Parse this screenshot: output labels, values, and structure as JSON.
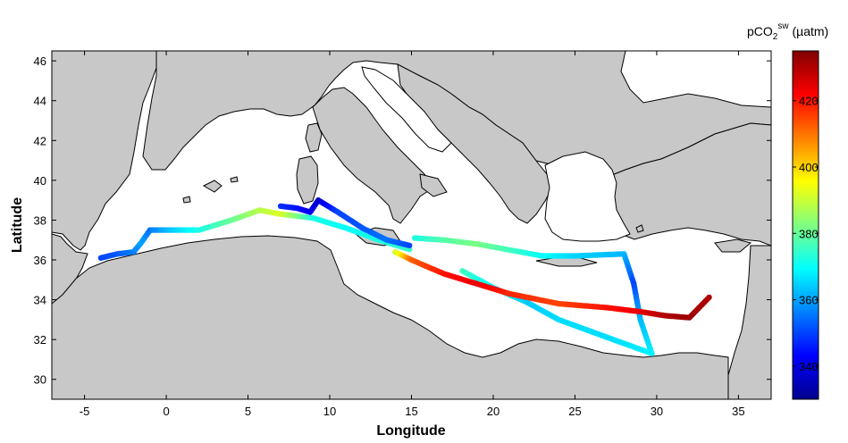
{
  "chart_data": {
    "type": "scatter",
    "title": "",
    "xlabel": "Longitude",
    "ylabel": "Latitude",
    "xlim": [
      -7,
      37
    ],
    "ylim": [
      29,
      46.5
    ],
    "xticks": [
      -5,
      0,
      5,
      10,
      15,
      20,
      25,
      30,
      35
    ],
    "yticks": [
      30,
      32,
      34,
      36,
      38,
      40,
      42,
      44,
      46
    ],
    "grid": false,
    "background": "map of the Mediterranean Sea (sea white, land grey)",
    "colors": {
      "land": "#c8c8c8",
      "sea": "#ffffff"
    },
    "colorbar": {
      "label_main": "pCO",
      "label_sub": "2",
      "label_sup": "sw",
      "label_unit": " (µatm)",
      "colormap": "jet",
      "range": [
        330,
        435
      ],
      "ticks": [
        340,
        360,
        380,
        400,
        420
      ]
    },
    "tracks": [
      {
        "points": [
          [
            -4.0,
            36.1,
            350
          ],
          [
            -3.0,
            36.3,
            352
          ],
          [
            -2.0,
            36.4,
            356
          ],
          [
            -1.5,
            36.9,
            360
          ],
          [
            -1.0,
            37.5,
            355
          ],
          [
            0.0,
            37.5,
            362
          ],
          [
            2.0,
            37.5,
            372
          ],
          [
            4.0,
            38.0,
            380
          ],
          [
            5.7,
            38.5,
            388
          ],
          [
            7.0,
            38.3,
            392
          ],
          [
            9.0,
            38.1,
            372
          ],
          [
            11.0,
            37.6,
            370
          ],
          [
            13.0,
            37.0,
            372
          ],
          [
            15.0,
            36.5,
            375
          ]
        ]
      },
      {
        "points": [
          [
            7.0,
            38.7,
            348
          ],
          [
            8.0,
            38.6,
            345
          ],
          [
            8.8,
            38.4,
            342
          ],
          [
            9.3,
            39.0,
            338
          ],
          [
            10.5,
            38.4,
            350
          ],
          [
            12.0,
            37.6,
            352
          ],
          [
            13.5,
            37.0,
            355
          ],
          [
            15.0,
            36.7,
            350
          ]
        ]
      },
      {
        "points": [
          [
            15.2,
            37.1,
            372
          ],
          [
            17.0,
            37.0,
            378
          ],
          [
            19.0,
            36.8,
            382
          ],
          [
            21.0,
            36.5,
            376
          ],
          [
            23.0,
            36.2,
            370
          ],
          [
            25.0,
            36.2,
            365
          ],
          [
            28.0,
            36.3,
            362
          ],
          [
            28.6,
            34.8,
            350
          ],
          [
            29.0,
            33.0,
            362
          ],
          [
            29.7,
            31.3,
            368
          ],
          [
            27.0,
            32.1,
            366
          ],
          [
            24.0,
            33.0,
            366
          ],
          [
            22.0,
            33.9,
            364
          ],
          [
            20.0,
            34.6,
            368
          ],
          [
            18.0,
            35.5,
            376
          ]
        ]
      },
      {
        "points": [
          [
            14.0,
            36.4,
            390
          ],
          [
            15.0,
            36.0,
            412
          ],
          [
            17.0,
            35.3,
            420
          ],
          [
            19.0,
            34.8,
            424
          ],
          [
            21.0,
            34.3,
            418
          ],
          [
            24.0,
            33.8,
            415
          ],
          [
            27.0,
            33.6,
            420
          ],
          [
            29.0,
            33.4,
            424
          ],
          [
            30.5,
            33.2,
            430
          ],
          [
            32.0,
            33.1,
            432
          ],
          [
            33.3,
            34.2,
            430
          ]
        ]
      }
    ]
  }
}
